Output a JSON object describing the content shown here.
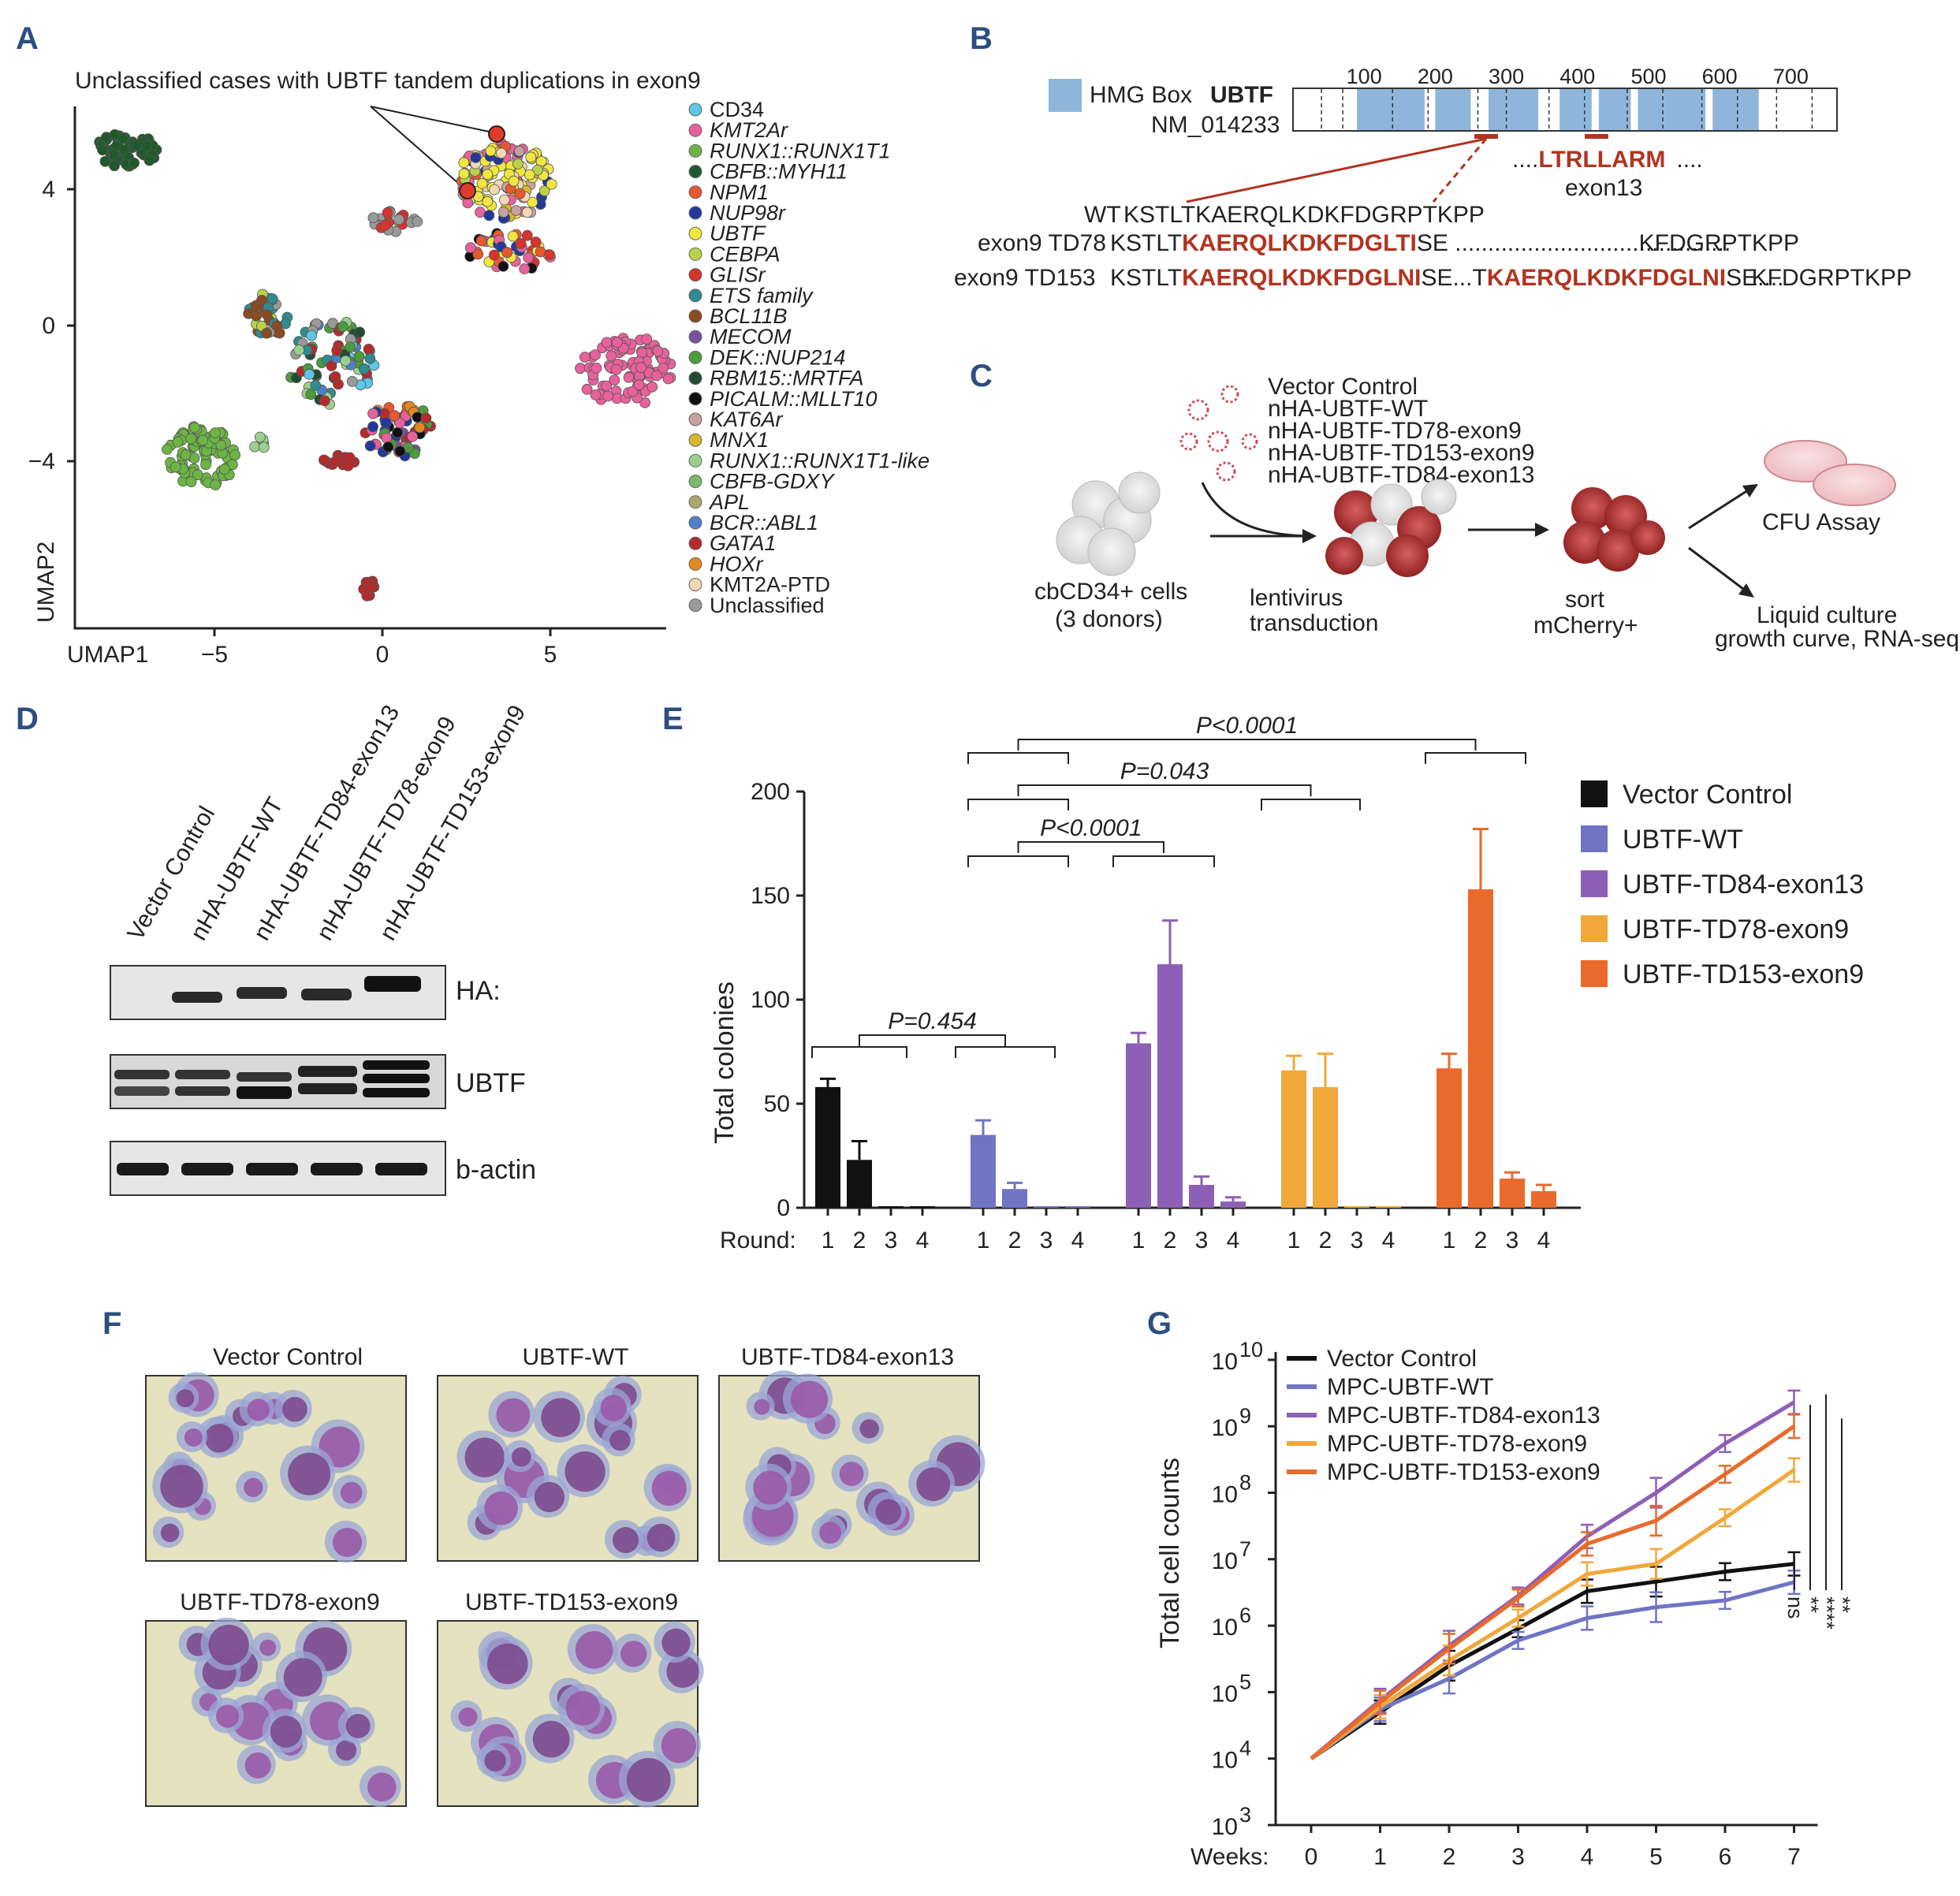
{
  "panels": {
    "A": "A",
    "B": "B",
    "C": "C",
    "D": "D",
    "E": "E",
    "F": "F",
    "G": "G"
  },
  "colors": {
    "vector_control": "#111111",
    "ubtf_wt": "#6f74c4",
    "td84": "#8e5fb6",
    "td78": "#f0a83a",
    "td153": "#ea6a2c",
    "hmg_box": "#8fb6da",
    "accent_red": "#b03420"
  },
  "panelA": {
    "annotation": "Unclassified cases with UBTF tandem duplications in exon9",
    "xlabel": "UMAP1",
    "ylabel": "UMAP2",
    "xticks": [
      "−5",
      "0",
      "5"
    ],
    "yticks": [
      "4",
      "0",
      "−4"
    ],
    "legend": [
      {
        "label": "CD34",
        "color": "#5ec6e6",
        "italic": false
      },
      {
        "label": "KMT2Ar",
        "color": "#e8619b",
        "italic": true
      },
      {
        "label": "RUNX1::RUNX1T1",
        "color": "#6cb544",
        "italic": true
      },
      {
        "label": "CBFB::MYH11",
        "color": "#1f5a2a",
        "italic": true
      },
      {
        "label": "NPM1",
        "color": "#e8572f",
        "italic": true
      },
      {
        "label": "NUP98r",
        "color": "#23399a",
        "italic": true
      },
      {
        "label": "UBTF",
        "color": "#f1e640",
        "italic": true
      },
      {
        "label": "CEBPA",
        "color": "#b8d34a",
        "italic": true
      },
      {
        "label": "GLISr",
        "color": "#d9332d",
        "italic": true
      },
      {
        "label": "ETS family",
        "color": "#2f8c8f",
        "italic": true
      },
      {
        "label": "BCL11B",
        "color": "#8a4a22",
        "italic": true
      },
      {
        "label": "MECOM",
        "color": "#7a4fa0",
        "italic": true
      },
      {
        "label": "DEK::NUP214",
        "color": "#4c9b3c",
        "italic": true
      },
      {
        "label": "RBM15::MRTFA",
        "color": "#244c35",
        "italic": true
      },
      {
        "label": "PICALM::MLLT10",
        "color": "#111111",
        "italic": true
      },
      {
        "label": "KAT6Ar",
        "color": "#c9a0a0",
        "italic": true
      },
      {
        "label": "MNX1",
        "color": "#d7b82c",
        "italic": true
      },
      {
        "label": "RUNX1::RUNX1T1-like",
        "color": "#9ccf8e",
        "italic": true
      },
      {
        "label": "CBFB-GDXY",
        "color": "#7bb86d",
        "italic": true
      },
      {
        "label": "APL",
        "color": "#a9a770",
        "italic": true
      },
      {
        "label": "BCR::ABL1",
        "color": "#4f7fc8",
        "italic": true
      },
      {
        "label": "GATA1",
        "color": "#b52b2b",
        "italic": true
      },
      {
        "label": "HOXr",
        "color": "#e08a1f",
        "italic": true
      },
      {
        "label": "KMT2A-PTD",
        "color": "#f1d7b2",
        "italic": false
      },
      {
        "label": "Unclassified",
        "color": "#999999",
        "italic": false
      }
    ]
  },
  "panelB": {
    "hmg_label": "HMG Box",
    "gene": "UBTF",
    "accession": "NM_014233",
    "ticks": [
      "100",
      "200",
      "300",
      "400",
      "500",
      "600",
      "700"
    ],
    "exon13_dots": "....",
    "exon13_seq": "LTRLLARM",
    "exon13_tail": "....",
    "exon13_label": "exon13",
    "wt_label": "WT",
    "wt_seq": "KSTLTKAERQLKDKFDGRPTKPP",
    "td78_label": "exon9 TD78",
    "td78_pre": "KSTLT",
    "td78_dup": "KAERQLKDKFDGLTI",
    "td78_post": "SE ..........................................",
    "td78_end": "KFDGRPTKPP",
    "td153_label": "exon9 TD153",
    "td153_pre": "KSTLT",
    "td153_dup1": "KAERQLKDKFDGLNI",
    "td153_mid": "SE...T",
    "td153_dup2": "KAERQLKDKFDGLNI",
    "td153_post": "SE....",
    "td153_end": "KFDGRPTKPP"
  },
  "panelC": {
    "constructs": [
      "Vector Control",
      "nHA-UBTF-WT",
      "nHA-UBTF-TD78-exon9",
      "nHA-UBTF-TD153-exon9",
      "nHA-UBTF-TD84-exon13"
    ],
    "cells_line1": "cbCD34+ cells",
    "cells_line2": "(3 donors)",
    "transduction_line1": "lentivirus",
    "transduction_line2": "transduction",
    "sort_line1": "sort",
    "sort_line2": "mCherry+",
    "cfu": "CFU  Assay",
    "liquid_line1": "Liquid  culture",
    "liquid_line2": "growth  curve, RNA-seq"
  },
  "panelD": {
    "lanes": [
      "Vector Control",
      "nHA-UBTF-WT",
      "nHA-UBTF-TD84-exon13",
      "nHA-UBTF-TD78-exon9",
      "nHA-UBTF-TD153-exon9"
    ],
    "blots": [
      "HA:",
      "UBTF",
      "b-actin"
    ]
  },
  "panelF": {
    "titles": [
      "Vector Control",
      "UBTF-WT",
      "UBTF-TD84-exon13",
      "UBTF-TD78-exon9",
      "UBTF-TD153-exon9"
    ]
  },
  "chart_data": [
    {
      "type": "bar",
      "panel": "E",
      "ylabel": "Total  colonies",
      "xlabel": "Round:",
      "ylim": [
        0,
        200
      ],
      "yticks": [
        0,
        50,
        100,
        150,
        200
      ],
      "categories": [
        "1",
        "2",
        "3",
        "4"
      ],
      "series": [
        {
          "name": "Vector Control",
          "values": [
            58,
            23,
            0,
            0
          ],
          "errors": [
            4,
            9,
            0,
            0
          ]
        },
        {
          "name": "UBTF-WT",
          "values": [
            35,
            9,
            0,
            0
          ],
          "errors": [
            7,
            3,
            0,
            0
          ]
        },
        {
          "name": "UBTF-TD84-exon13",
          "values": [
            79,
            117,
            11,
            3
          ],
          "errors": [
            5,
            21,
            4,
            2
          ]
        },
        {
          "name": "UBTF-TD78-exon9",
          "values": [
            66,
            58,
            0,
            0
          ],
          "errors": [
            7,
            16,
            0,
            0
          ]
        },
        {
          "name": "UBTF-TD153-exon9",
          "values": [
            67,
            153,
            14,
            8
          ],
          "errors": [
            7,
            29,
            3,
            3
          ]
        }
      ],
      "annotations": [
        "P=0.454",
        "P<0.0001",
        "P=0.043",
        "P<0.0001"
      ],
      "legend_position": "right"
    },
    {
      "type": "line",
      "panel": "G",
      "ylabel": "Total  cell  counts",
      "xlabel": "Weeks:",
      "x": [
        0,
        1,
        2,
        3,
        4,
        5,
        6,
        7
      ],
      "yscale": "log",
      "ylim": [
        1000,
        10000000000
      ],
      "ytick_exponents": [
        "3",
        "4",
        "5",
        "6",
        "7",
        "8",
        "9",
        "10"
      ],
      "series": [
        {
          "name": "Vector Control",
          "values": [
            10000,
            50000,
            250000,
            900000,
            3300000,
            4600000,
            6500000,
            8500000
          ]
        },
        {
          "name": "MPC-UBTF-WT",
          "values": [
            10000,
            55000,
            160000,
            600000,
            1300000,
            1900000,
            2400000,
            4500000
          ]
        },
        {
          "name": "MPC-UBTF-TD84-exon13",
          "values": [
            10000,
            75000,
            500000,
            2800000,
            22000000,
            100000000,
            550000000,
            2300000000
          ]
        },
        {
          "name": "MPC-UBTF-TD78-exon9",
          "values": [
            10000,
            60000,
            300000,
            1300000,
            6000000,
            8500000,
            42000000,
            220000000
          ]
        },
        {
          "name": "MPC-UBTF-TD153-exon9",
          "values": [
            10000,
            70000,
            450000,
            2600000,
            17000000,
            38000000,
            190000000,
            1000000000
          ]
        }
      ],
      "significance": [
        "ns",
        "**",
        "****",
        "**"
      ],
      "legend_position": "top-left"
    }
  ]
}
